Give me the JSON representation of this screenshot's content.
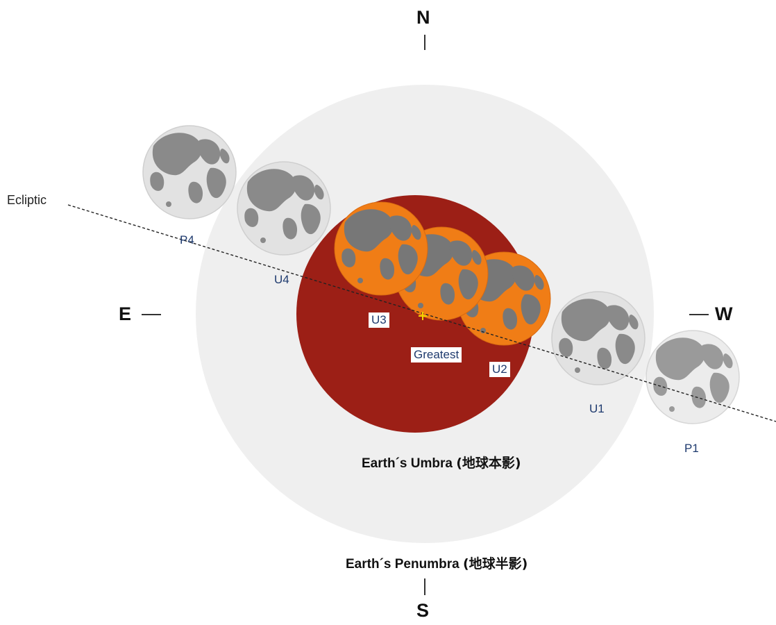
{
  "compass": {
    "north": "N",
    "south": "S",
    "east": "E",
    "west": "W"
  },
  "ecliptic_label": "Ecliptic",
  "umbra_label": {
    "en": "Earth´s Umbra",
    "zh": "(地球本影)"
  },
  "penumbra_label": {
    "en": "Earth´s Penumbra",
    "zh": "(地球半影)"
  },
  "contacts": {
    "p1": "P1",
    "u1": "U1",
    "u2": "U2",
    "greatest": "Greatest",
    "u3": "U3",
    "u4": "U4",
    "p4": "P4"
  },
  "colors": {
    "penumbra": "#efefef",
    "umbra": "#9c1f16",
    "eclipsed_moon": "#f07d16",
    "eclipsed_maria": "#777777",
    "outside_moon": "#e2e2e2",
    "outside_maria": "#8a8a8a",
    "label": "#1e3a6e"
  }
}
